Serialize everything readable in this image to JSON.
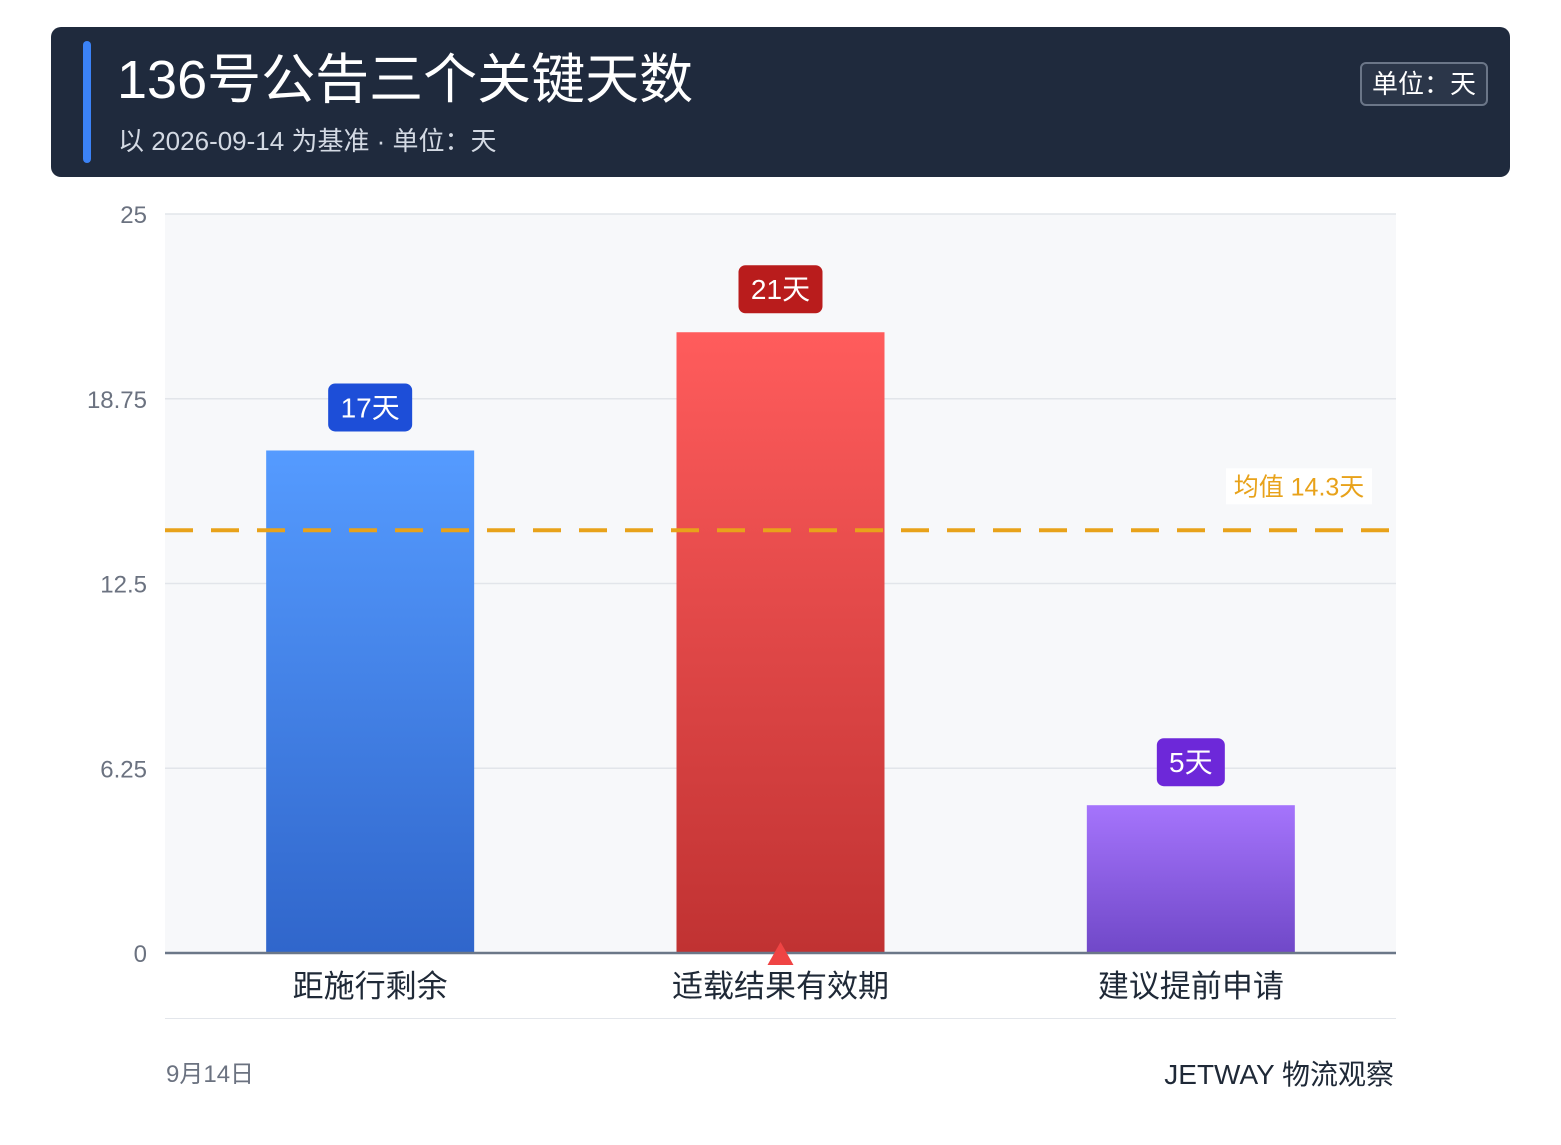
{
  "header": {
    "title": "136号公告三个关键天数",
    "subtitle": "以 2026-09-14 为基准 · 单位：天",
    "unit_badge": "单位：天"
  },
  "footer": {
    "date": "9月14日",
    "brand": "JETWAY 物流观察"
  },
  "colors": {
    "header_bg": "#1f2a3d",
    "accent": "#3b82f6",
    "mean_line": "#e8a21a"
  },
  "chart_data": {
    "type": "bar",
    "categories": [
      "距施行剩余",
      "适载结果有效期",
      "建议提前申请"
    ],
    "values": [
      17,
      21,
      5
    ],
    "data_labels": [
      "17天",
      "21天",
      "5天"
    ],
    "bar_colors": [
      {
        "top": "#559bff",
        "bottom": "#3066cb",
        "label_bg": "#1d4ed8"
      },
      {
        "top": "#ff5c5c",
        "bottom": "#c03232",
        "label_bg": "#b91c1c"
      },
      {
        "top": "#a574fc",
        "bottom": "#7048c8",
        "label_bg": "#6d28d9"
      }
    ],
    "ylim": [
      0,
      25
    ],
    "yticks": [
      0,
      6.25,
      12.5,
      18.75,
      25
    ],
    "ytick_labels": [
      "0",
      "6.25",
      "12.5",
      "18.75",
      "25"
    ],
    "grid": true,
    "mean": {
      "value": 14.3,
      "label": "均值 14.3天"
    },
    "marker": {
      "category_index": 1,
      "shape": "triangle-up",
      "color": "#ef4444"
    },
    "xlabel": "",
    "ylabel": ""
  }
}
